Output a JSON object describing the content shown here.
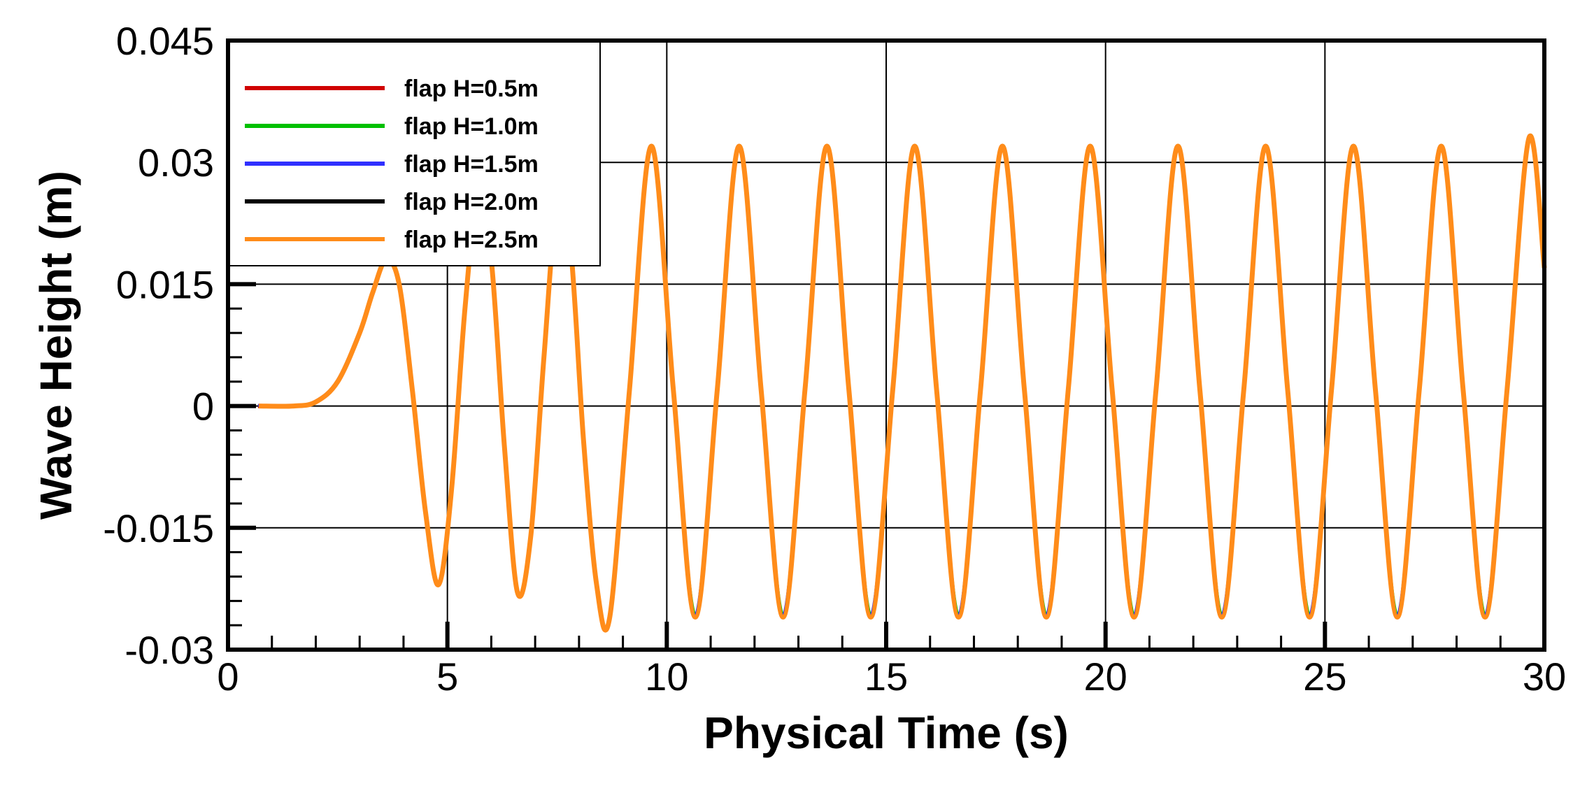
{
  "chart_data": {
    "type": "line",
    "title": "",
    "xlabel": "Physical Time (s)",
    "ylabel": "Wave Height (m)",
    "xlim": [
      0,
      30
    ],
    "ylim": [
      -0.03,
      0.045
    ],
    "xticks": [
      0,
      5,
      10,
      15,
      20,
      25,
      30
    ],
    "xtick_labels": [
      "0",
      "5",
      "10",
      "15",
      "20",
      "25",
      "30"
    ],
    "yticks": [
      -0.03,
      -0.015,
      0,
      0.015,
      0.03,
      0.045
    ],
    "ytick_labels": [
      "-0.03",
      "-0.015",
      "0",
      "0.015",
      "0.03",
      "0.045"
    ],
    "grid": true,
    "legend_position": "top-left",
    "series": [
      {
        "name": "flap H=0.5m",
        "color": "#d00000"
      },
      {
        "name": "flap H=1.0m",
        "color": "#00c000"
      },
      {
        "name": "flap H=1.5m",
        "color": "#3030ff"
      },
      {
        "name": "flap H=2.0m",
        "color": "#000000"
      },
      {
        "name": "flap H=2.5m",
        "color": "#ff8c1a"
      }
    ],
    "x": [
      0.7,
      1.5,
      2.0,
      2.5,
      3.0,
      3.3,
      3.6,
      3.9,
      4.2,
      4.5,
      4.8,
      5.1,
      5.4,
      5.7,
      6.0,
      6.3,
      6.6,
      6.9,
      7.2,
      7.5,
      7.8,
      8.1,
      8.4,
      8.7,
      9.15,
      9.65,
      10.15,
      10.65,
      11.15,
      11.65,
      12.15,
      12.65,
      13.15,
      13.65,
      14.15,
      14.65,
      15.15,
      15.65,
      16.15,
      16.65,
      17.15,
      17.65,
      18.15,
      18.65,
      19.15,
      19.65,
      20.15,
      20.65,
      21.15,
      21.65,
      22.15,
      22.65,
      23.15,
      23.65,
      24.15,
      24.65,
      25.15,
      25.65,
      26.15,
      26.65,
      27.15,
      27.65,
      28.15,
      28.65,
      29.15,
      29.65,
      30.0
    ],
    "y": [
      0.0,
      0.0,
      0.0005,
      0.003,
      0.009,
      0.014,
      0.018,
      0.015,
      0.002,
      -0.013,
      -0.022,
      -0.01,
      0.012,
      0.026,
      0.018,
      -0.005,
      -0.023,
      -0.016,
      0.006,
      0.025,
      0.02,
      -0.004,
      -0.022,
      -0.026,
      0.002,
      0.032,
      0.002,
      -0.026,
      0.002,
      0.032,
      0.002,
      -0.026,
      0.002,
      0.032,
      0.002,
      -0.026,
      0.002,
      0.032,
      0.002,
      -0.026,
      0.002,
      0.032,
      0.002,
      -0.026,
      0.002,
      0.032,
      0.002,
      -0.026,
      0.002,
      0.032,
      0.002,
      -0.026,
      0.002,
      0.032,
      0.002,
      -0.026,
      0.002,
      0.032,
      0.002,
      -0.026,
      0.002,
      0.032,
      0.002,
      -0.026,
      0.002,
      0.033,
      0.017
    ]
  }
}
